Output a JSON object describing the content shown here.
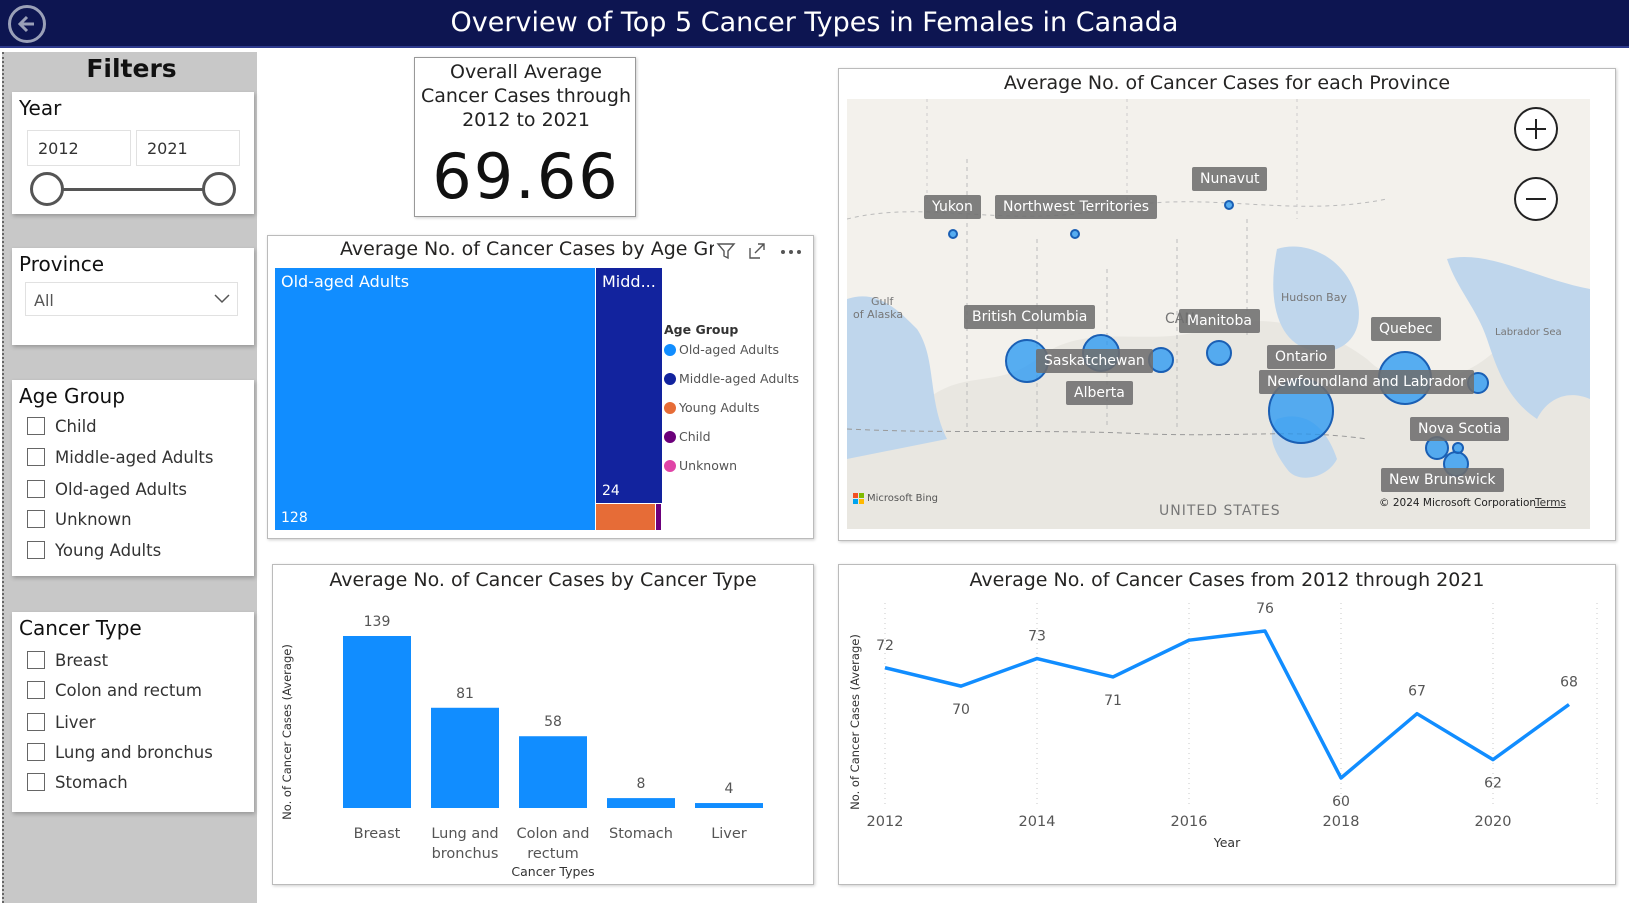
{
  "header": {
    "title": "Overview of Top 5 Cancer Types in Females in Canada",
    "back_icon": "back-arrow-icon"
  },
  "filters": {
    "title": "Filters",
    "year": {
      "label": "Year",
      "start": "2012",
      "end": "2021",
      "range_fraction": [
        0,
        1
      ]
    },
    "province": {
      "label": "Province",
      "selected": "All"
    },
    "age_group": {
      "label": "Age Group",
      "options": [
        "Child",
        "Middle-aged Adults",
        "Old-aged Adults",
        "Unknown",
        "Young Adults"
      ]
    },
    "cancer_type": {
      "label": "Cancer Type",
      "options": [
        "Breast",
        "Colon and rectum",
        "Liver",
        "Lung and bronchus",
        "Stomach"
      ]
    }
  },
  "kpi": {
    "label_lines": [
      "Overall Average",
      "Cancer Cases through",
      "2012 to 2021"
    ],
    "value": "69.66"
  },
  "treemap": {
    "title": "Average No. of Cancer Cases by Age Grc",
    "legend_title": "Age Group",
    "legend": [
      {
        "name": "Old-aged Adults",
        "color": "#118dff"
      },
      {
        "name": "Middle-aged Adults",
        "color": "#12239e"
      },
      {
        "name": "Young Adults",
        "color": "#e66c37"
      },
      {
        "name": "Child",
        "color": "#6b007b"
      },
      {
        "name": "Unknown",
        "color": "#e044a7"
      }
    ],
    "tiles": [
      {
        "label": "Old-aged Adults",
        "value": "128"
      },
      {
        "label": "Midd...",
        "value": "24"
      }
    ]
  },
  "map": {
    "title": "Average No. of Cancer Cases for each Province",
    "provinces": [
      "Yukon",
      "Northwest Territories",
      "Nunavut",
      "British Columbia",
      "Saskatchewan",
      "Alberta",
      "Manitoba",
      "Ontario",
      "Quebec",
      "Newfoundland and Labrador",
      "Nova Scotia",
      "New Brunswick"
    ],
    "geo_labels": {
      "gulf": "Gulf",
      "alaska": "of Alaska",
      "hudson": "Hudson Bay",
      "labrador_sea": "Labrador Sea",
      "canada": "CAN",
      "us": "UNITED STATES"
    },
    "attribution": "Microsoft Bing",
    "copyright": "© 2024 Microsoft Corporation",
    "terms": "Terms"
  },
  "bar_chart": {
    "title": "Average No. of Cancer Cases by Cancer Type",
    "chart_data": {
      "type": "bar",
      "categories": [
        [
          "Breast"
        ],
        [
          "Lung and",
          "bronchus"
        ],
        [
          "Colon and",
          "rectum"
        ],
        [
          "Stomach"
        ],
        [
          "Liver"
        ]
      ],
      "values": [
        139,
        81,
        58,
        8,
        4
      ],
      "xlabel": "Cancer Types",
      "ylabel": "No. of Cancer Cases (Average)",
      "color": "#118dff"
    }
  },
  "line_chart": {
    "title": "Average No. of Cancer Cases from 2012 through 2021",
    "chart_data": {
      "type": "line",
      "x": [
        2012,
        2013,
        2014,
        2015,
        2016,
        2017,
        2018,
        2019,
        2020,
        2021
      ],
      "y": [
        72,
        70,
        73,
        71,
        75,
        76,
        60,
        67,
        62,
        68
      ],
      "labels": [
        "72",
        "70",
        "73",
        "71",
        "",
        "76",
        "60",
        "67",
        "62",
        "68"
      ],
      "x_ticks": [
        "2012",
        "2014",
        "2016",
        "2018",
        "2020"
      ],
      "xlabel": "Year",
      "ylabel": "No. of Cancer Cases (Average)",
      "color": "#118dff"
    }
  }
}
